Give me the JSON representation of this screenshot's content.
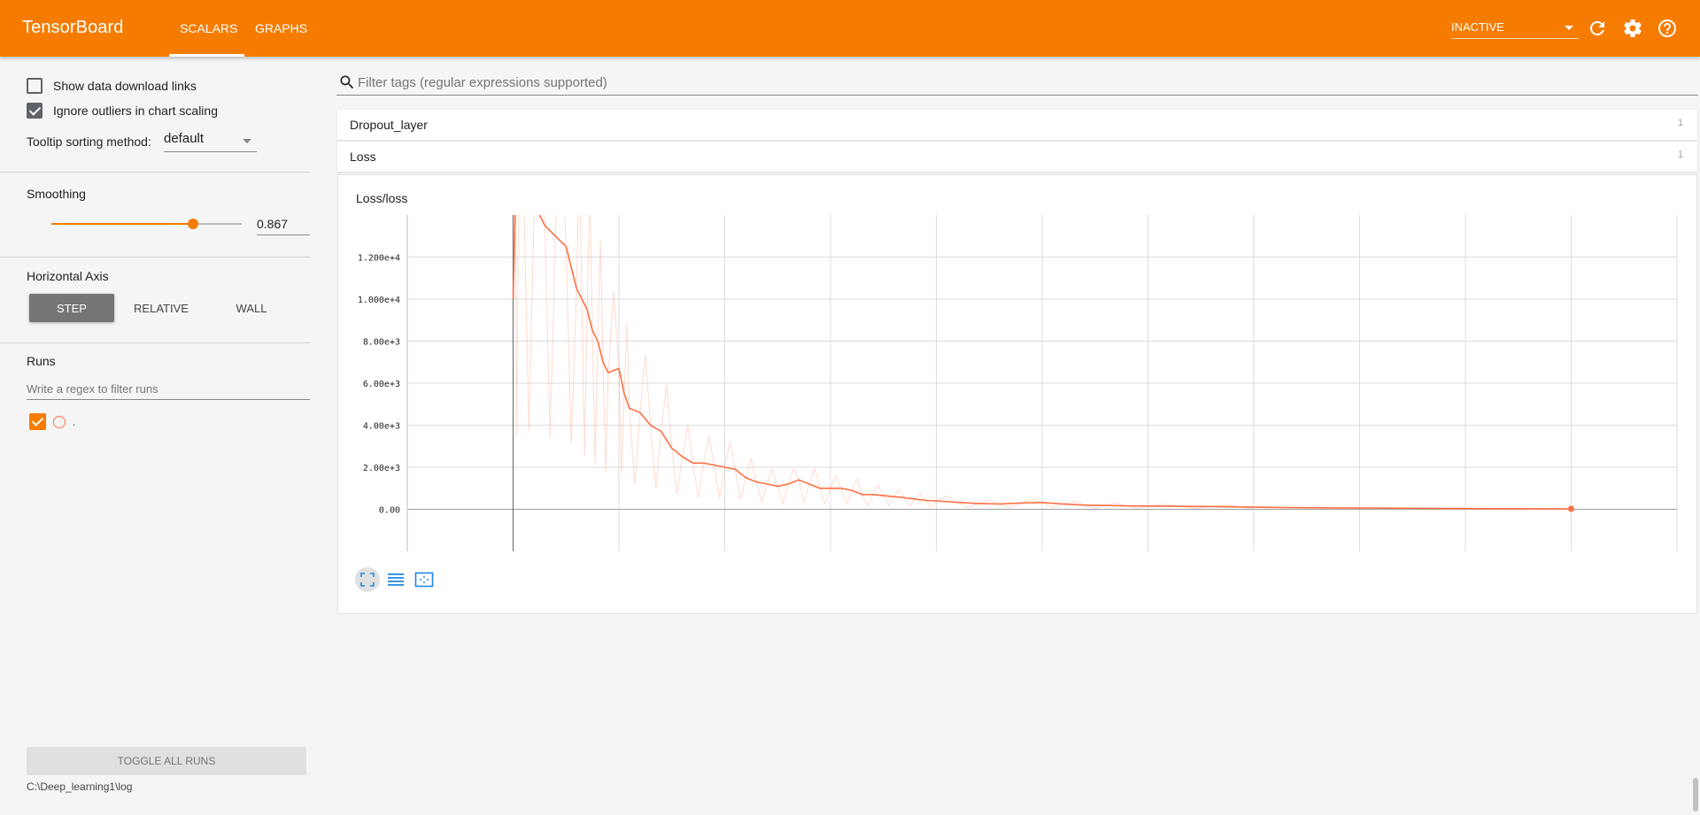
{
  "header": {
    "brand": "TensorBoard",
    "tabs": [
      {
        "label": "SCALARS",
        "active": true
      },
      {
        "label": "GRAPHS",
        "active": false
      }
    ],
    "run_status": "INACTIVE",
    "icons": [
      "reload-icon",
      "settings-icon",
      "help-icon"
    ],
    "color": "#f57c00"
  },
  "sidebar": {
    "show_download_label": "Show data download links",
    "show_download_checked": false,
    "ignore_outliers_label": "Ignore outliers in chart scaling",
    "ignore_outliers_checked": true,
    "tooltip_label": "Tooltip sorting method:",
    "tooltip_value": "default",
    "smoothing_title": "Smoothing",
    "smoothing_value": "0.867",
    "horizontal_axis_title": "Horizontal Axis",
    "axis_buttons": [
      "STEP",
      "RELATIVE",
      "WALL"
    ],
    "axis_selected": "STEP",
    "runs_title": "Runs",
    "runs_filter_placeholder": "Write a regex to filter runs",
    "runs": [
      {
        "name": ".",
        "checked": true,
        "color": "#ff7043"
      }
    ],
    "toggle_all_label": "TOGGLE ALL RUNS",
    "log_path": "C:\\Deep_learning1\\log"
  },
  "main": {
    "filter_placeholder": "Filter tags (regular expressions supported)",
    "categories": [
      {
        "name": "Dropout_layer",
        "count": "1"
      },
      {
        "name": "Loss",
        "count": "1"
      }
    ],
    "chart_title": "Loss/loss"
  },
  "chart_data": {
    "type": "line",
    "title": "Loss/loss",
    "xlabel": "",
    "ylabel": "",
    "y_tick_labels": [
      "1.200e+4",
      "1.000e+4",
      "8.00e+3",
      "6.00e+3",
      "4.00e+3",
      "2.00e+3",
      "0.00"
    ],
    "y_ticks": [
      12000,
      10000,
      8000,
      6000,
      4000,
      2000,
      0
    ],
    "ylim": [
      -2000,
      14000
    ],
    "xlim": [
      0,
      12
    ],
    "grid": true,
    "smoothing": 0.867,
    "series": [
      {
        "name": ".",
        "color": "#ff7043",
        "x": [
          1.0,
          1.02,
          1.05,
          1.1,
          1.2,
          1.3,
          1.4,
          1.5,
          1.6,
          1.65,
          1.7,
          1.75,
          1.8,
          1.85,
          1.9,
          2.0,
          2.05,
          2.1,
          2.2,
          2.3,
          2.4,
          2.5,
          2.6,
          2.7,
          2.8,
          2.9,
          3.0,
          3.1,
          3.2,
          3.3,
          3.4,
          3.5,
          3.6,
          3.7,
          3.8,
          3.9,
          4.0,
          4.1,
          4.2,
          4.3,
          4.4,
          4.5,
          4.6,
          4.7,
          4.8,
          4.9,
          5.0,
          5.2,
          5.4,
          5.6,
          5.8,
          6.0,
          6.2,
          6.4,
          6.6,
          6.8,
          7.0,
          7.3,
          7.6,
          7.9,
          8.0,
          8.3,
          8.6,
          9.0,
          9.4,
          9.8,
          10.2,
          10.6,
          11.0
        ],
        "y": [
          10000,
          14000,
          14500,
          15000,
          14500,
          13500,
          13000,
          12500,
          10500,
          10000,
          9500,
          8500,
          8000,
          7000,
          6500,
          6700,
          5500,
          4800,
          4600,
          4000,
          3700,
          2900,
          2500,
          2200,
          2200,
          2100,
          2000,
          1900,
          1500,
          1300,
          1200,
          1100,
          1200,
          1400,
          1200,
          1000,
          1000,
          1000,
          900,
          700,
          700,
          650,
          600,
          550,
          480,
          420,
          400,
          330,
          270,
          250,
          300,
          320,
          250,
          200,
          180,
          160,
          150,
          140,
          130,
          110,
          100,
          80,
          70,
          60,
          50,
          40,
          30,
          25,
          20
        ]
      }
    ]
  }
}
